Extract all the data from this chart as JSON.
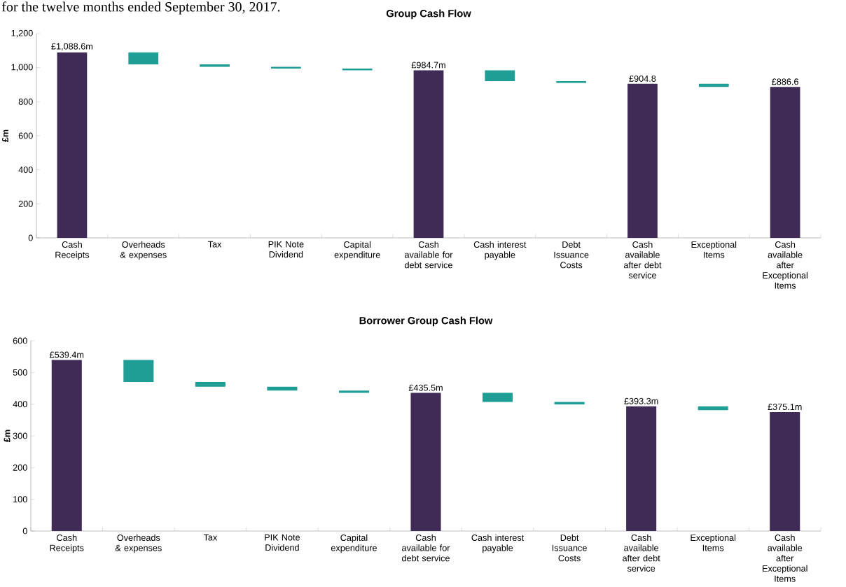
{
  "chart_data": [
    {
      "type": "bar",
      "title": "Group Cash Flow",
      "ylabel": "£m",
      "annotations": [
        "for the twelve months ended September 30, 2017."
      ],
      "categories": [
        "Cash Receipts",
        "Overheads & expenses",
        "Tax",
        "PIK Note Dividend",
        "Capital expenditure",
        "Cash available for debt service",
        "Cash interest payable",
        "Debt Issuance Costs",
        "Cash available after debt service",
        "Exceptional Items",
        "Cash available after Exceptional Items"
      ],
      "series": [
        {
          "values": [
            1088.6,
            69.6,
            14,
            11,
            9.3,
            984.7,
            64.7,
            10,
            904.8,
            18.2,
            886.6
          ],
          "base": [
            0,
            1019,
            1005,
            994,
            984.7,
            0,
            920,
            910,
            0,
            886.6,
            0
          ],
          "colors": [
            "#3f2b56",
            "#1f9e95",
            "#1f9e95",
            "#1f9e95",
            "#1f9e95",
            "#3f2b56",
            "#1f9e95",
            "#1f9e95",
            "#3f2b56",
            "#1f9e95",
            "#3f2b56"
          ],
          "value_labels": [
            "£1,088.6m",
            null,
            null,
            null,
            null,
            "£984.7m",
            null,
            null,
            "£904.8",
            null,
            "£886.6"
          ]
        }
      ],
      "ylim": [
        0,
        1200
      ],
      "yticks": [
        0,
        200,
        400,
        600,
        800,
        {
          "value": 1000,
          "label": "1,000"
        },
        {
          "value": 1200,
          "label": "1,200"
        }
      ]
    },
    {
      "type": "bar",
      "title": "Borrower Group Cash Flow",
      "ylabel": "£m",
      "categories": [
        "Cash Receipts",
        "Overheads & expenses",
        "Tax",
        "PIK Note Dividend",
        "Capital expenditure",
        "Cash available for debt service",
        "Cash interest payable",
        "Debt Issuance Costs",
        "Cash available after debt service",
        "Exceptional Items",
        "Cash available after Exceptional Items"
      ],
      "series": [
        {
          "values": [
            539.4,
            69.4,
            15,
            12,
            7.5,
            435.5,
            28.5,
            8,
            393.3,
            12,
            375.1
          ],
          "base": [
            0,
            470,
            455,
            443,
            435.5,
            0,
            407,
            399,
            0,
            381,
            0
          ],
          "colors": [
            "#3f2b56",
            "#1f9e95",
            "#1f9e95",
            "#1f9e95",
            "#1f9e95",
            "#3f2b56",
            "#1f9e95",
            "#1f9e95",
            "#3f2b56",
            "#1f9e95",
            "#3f2b56"
          ],
          "value_labels": [
            "£539.4m",
            null,
            null,
            null,
            null,
            "£435.5m",
            null,
            null,
            "£393.3m",
            null,
            "£375.1m"
          ]
        }
      ],
      "ylim": [
        0,
        600
      ],
      "yticks": [
        0,
        100,
        200,
        300,
        400,
        500,
        600
      ]
    }
  ]
}
